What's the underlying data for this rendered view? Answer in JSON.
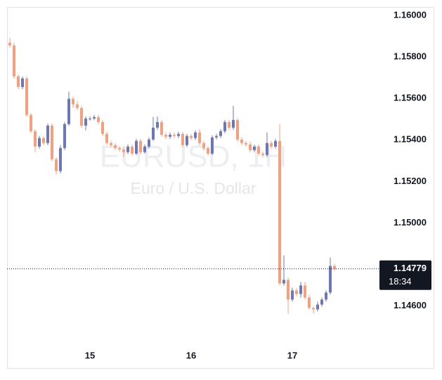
{
  "chart_data": {
    "type": "candlestick",
    "watermark_symbol": "EURUSD, 1H",
    "watermark_description": "Euro / U.S. Dollar",
    "up_color": "#6b77b6",
    "down_color": "#f4a07c",
    "ylim": [
      1.1444,
      1.1604
    ],
    "yticks": [
      {
        "value": 1.16,
        "label": "1.16000"
      },
      {
        "value": 1.158,
        "label": "1.15800"
      },
      {
        "value": 1.156,
        "label": "1.15600"
      },
      {
        "value": 1.154,
        "label": "1.15400"
      },
      {
        "value": 1.152,
        "label": "1.15200"
      },
      {
        "value": 1.15,
        "label": "1.15000"
      },
      {
        "value": 1.146,
        "label": "1.14600"
      }
    ],
    "last_price": 1.14779,
    "countdown": "18:34",
    "categories": [
      null,
      null,
      null,
      null,
      null,
      null,
      null,
      null,
      null,
      null,
      null,
      null,
      null,
      null,
      null,
      null,
      null,
      null,
      null,
      "15",
      null,
      null,
      null,
      null,
      null,
      null,
      null,
      null,
      null,
      null,
      null,
      null,
      null,
      null,
      null,
      null,
      null,
      null,
      null,
      null,
      null,
      null,
      null,
      "16",
      null,
      null,
      null,
      null,
      null,
      null,
      null,
      null,
      null,
      null,
      null,
      null,
      null,
      null,
      null,
      null,
      null,
      null,
      null,
      null,
      null,
      null,
      null,
      "17",
      null,
      null,
      null,
      null,
      null,
      null,
      null,
      null,
      null,
      null
    ],
    "ohlc": [
      [
        1.15868,
        1.15892,
        1.15845,
        1.15855
      ],
      [
        1.15855,
        1.15868,
        1.15696,
        1.15706
      ],
      [
        1.15706,
        1.15716,
        1.15645,
        1.15655
      ],
      [
        1.15655,
        1.15706,
        1.15645,
        1.15696
      ],
      [
        1.15696,
        1.15706,
        1.1551,
        1.1552
      ],
      [
        1.1552,
        1.1553,
        1.15432,
        1.15442
      ],
      [
        1.15442,
        1.15452,
        1.15341,
        1.15368
      ],
      [
        1.15368,
        1.15419,
        1.15358,
        1.15409
      ],
      [
        1.15409,
        1.15419,
        1.15375,
        1.15385
      ],
      [
        1.15385,
        1.15479,
        1.15375,
        1.15469
      ],
      [
        1.15469,
        1.15479,
        1.15297,
        1.15307
      ],
      [
        1.15307,
        1.15317,
        1.15233,
        1.1525
      ],
      [
        1.1525,
        1.15375,
        1.15239,
        1.15361
      ],
      [
        1.15361,
        1.15486,
        1.15351,
        1.15476
      ],
      [
        1.15476,
        1.15632,
        1.15469,
        1.15598
      ],
      [
        1.15598,
        1.15608,
        1.15554,
        1.15571
      ],
      [
        1.15571,
        1.15588,
        1.15544,
        1.15554
      ],
      [
        1.15554,
        1.15564,
        1.15459,
        1.15469
      ],
      [
        1.15469,
        1.15513,
        1.15446,
        1.15503
      ],
      [
        1.15503,
        1.15513,
        1.15493,
        1.15503
      ],
      [
        1.15503,
        1.1552,
        1.15496,
        1.1551
      ],
      [
        1.1551,
        1.1552,
        1.15476,
        1.15486
      ],
      [
        1.15486,
        1.15496,
        1.15419,
        1.15429
      ],
      [
        1.15429,
        1.15439,
        1.15375,
        1.15385
      ],
      [
        1.15385,
        1.15395,
        1.15365,
        1.15375
      ],
      [
        1.15375,
        1.15385,
        1.15351,
        1.15361
      ],
      [
        1.15361,
        1.15371,
        1.15344,
        1.15354
      ],
      [
        1.15354,
        1.15365,
        1.15317,
        1.15341
      ],
      [
        1.15341,
        1.15378,
        1.15331,
        1.15368
      ],
      [
        1.15368,
        1.15378,
        1.15324,
        1.15334
      ],
      [
        1.15334,
        1.15405,
        1.15327,
        1.15395
      ],
      [
        1.15395,
        1.15405,
        1.15331,
        1.15341
      ],
      [
        1.15341,
        1.15378,
        1.15334,
        1.15368
      ],
      [
        1.15368,
        1.15412,
        1.15358,
        1.15402
      ],
      [
        1.15402,
        1.1551,
        1.15395,
        1.15459
      ],
      [
        1.15459,
        1.15513,
        1.15449,
        1.15486
      ],
      [
        1.15486,
        1.15496,
        1.15415,
        1.15425
      ],
      [
        1.15425,
        1.15436,
        1.15405,
        1.15415
      ],
      [
        1.15415,
        1.15436,
        1.15405,
        1.15425
      ],
      [
        1.15425,
        1.15436,
        1.15409,
        1.15419
      ],
      [
        1.15419,
        1.15439,
        1.15409,
        1.15429
      ],
      [
        1.15429,
        1.15439,
        1.15365,
        1.15375
      ],
      [
        1.15375,
        1.15429,
        1.15365,
        1.15419
      ],
      [
        1.15419,
        1.15429,
        1.15399,
        1.15409
      ],
      [
        1.15409,
        1.15446,
        1.15399,
        1.15436
      ],
      [
        1.15436,
        1.15452,
        1.15375,
        1.15385
      ],
      [
        1.15385,
        1.15395,
        1.15351,
        1.15361
      ],
      [
        1.15361,
        1.15371,
        1.15324,
        1.15334
      ],
      [
        1.15334,
        1.15422,
        1.15327,
        1.15412
      ],
      [
        1.15412,
        1.15429,
        1.15402,
        1.15419
      ],
      [
        1.15419,
        1.15452,
        1.15409,
        1.15442
      ],
      [
        1.15442,
        1.15496,
        1.15432,
        1.15486
      ],
      [
        1.15486,
        1.15496,
        1.15449,
        1.15459
      ],
      [
        1.15459,
        1.15564,
        1.15449,
        1.15496
      ],
      [
        1.15496,
        1.15503,
        1.15392,
        1.15402
      ],
      [
        1.15402,
        1.15412,
        1.15375,
        1.15385
      ],
      [
        1.15385,
        1.15395,
        1.15368,
        1.15378
      ],
      [
        1.15378,
        1.15392,
        1.15341,
        1.15351
      ],
      [
        1.15351,
        1.15378,
        1.15341,
        1.15368
      ],
      [
        1.15368,
        1.15378,
        1.15324,
        1.15334
      ],
      [
        1.15334,
        1.15344,
        1.15317,
        1.15327
      ],
      [
        1.15327,
        1.15436,
        1.15317,
        1.15385
      ],
      [
        1.15385,
        1.15395,
        1.15358,
        1.15368
      ],
      [
        1.15368,
        1.15405,
        1.15358,
        1.15395
      ],
      [
        1.15395,
        1.15476,
        1.14699,
        1.14709
      ],
      [
        1.14709,
        1.14844,
        1.14699,
        1.14726
      ],
      [
        1.14726,
        1.14736,
        1.14564,
        1.14631
      ],
      [
        1.14631,
        1.14689,
        1.14621,
        1.14675
      ],
      [
        1.14675,
        1.14686,
        1.14648,
        1.14658
      ],
      [
        1.14658,
        1.14716,
        1.14641,
        1.14699
      ],
      [
        1.14699,
        1.14716,
        1.14631,
        1.14641
      ],
      [
        1.14641,
        1.14655,
        1.14584,
        1.14591
      ],
      [
        1.14591,
        1.14597,
        1.14564,
        1.14584
      ],
      [
        1.14584,
        1.14621,
        1.14574,
        1.14607
      ],
      [
        1.14607,
        1.14641,
        1.14597,
        1.14631
      ],
      [
        1.14631,
        1.14675,
        1.14621,
        1.14665
      ],
      [
        1.14665,
        1.14834,
        1.14655,
        1.14793
      ],
      [
        1.14793,
        1.14803,
        1.1477,
        1.14779
      ]
    ]
  }
}
